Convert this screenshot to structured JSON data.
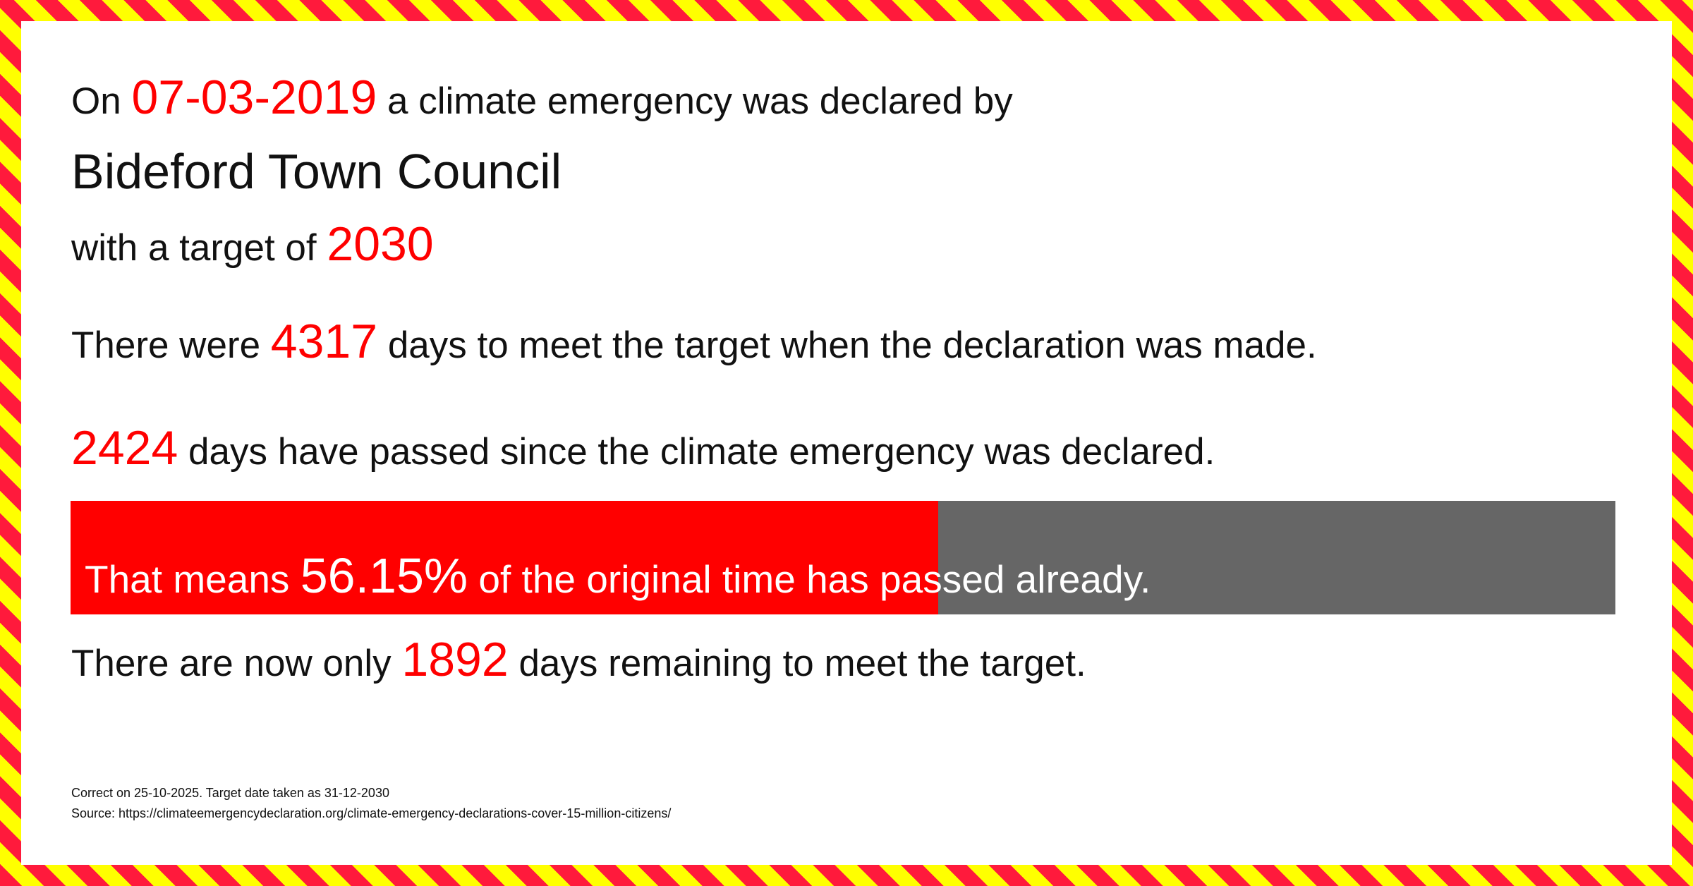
{
  "line1": {
    "prefix": "On",
    "date": "07-03-2019",
    "suffix": "a climate emergency was declared by"
  },
  "council": "Bideford Town Council",
  "line3": {
    "prefix": "with a target of",
    "target": "2030"
  },
  "line4": {
    "prefix": "There were",
    "days": 4317,
    "suffix": "days to meet the target when the declaration was made."
  },
  "line5": {
    "days": 2424,
    "suffix": "days have passed since the climate emergency was declared."
  },
  "progress": {
    "prefix": "That means",
    "percent": {
      "value": 56.15,
      "label": "56.15%"
    },
    "suffix": "of the original time has passed already."
  },
  "line7": {
    "prefix": "There are now only",
    "days": 1892,
    "suffix": "days remaining to meet the target."
  },
  "footer": {
    "correct": "Correct on 25-10-2025. Target date taken as 31-12-2030",
    "source": "Source: https://climateemergencydeclaration.org/climate-emergency-declarations-cover-15-million-citizens/"
  }
}
